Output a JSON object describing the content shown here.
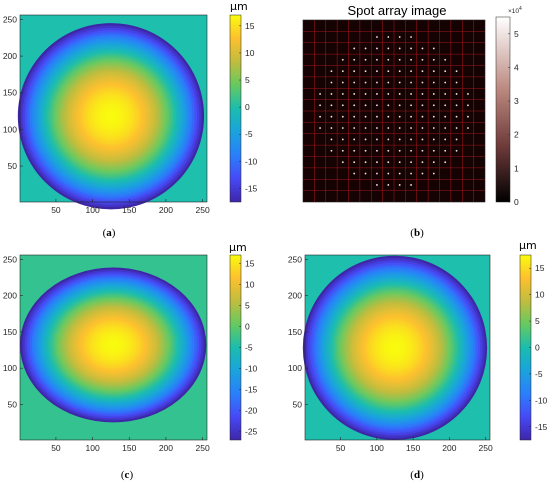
{
  "chart_data": [
    {
      "type": "heatmap",
      "panel": "a",
      "caption_letter": "a",
      "field": "circular_dome",
      "xlim": [
        1,
        256
      ],
      "ylim": [
        1,
        256
      ],
      "x_ticks": [
        50,
        100,
        150,
        200,
        250
      ],
      "y_ticks": [
        50,
        100,
        150,
        200,
        250
      ],
      "peak_center": [
        125,
        118
      ],
      "aperture_radius": 127,
      "colorbar": {
        "unit": "µm",
        "min": -17.5,
        "max": 17,
        "ticks": [
          15,
          10,
          5,
          0,
          -5,
          -10,
          -15
        ],
        "outside_value": 0
      }
    },
    {
      "type": "heatmap",
      "panel": "b",
      "caption_letter": "b",
      "field": "spot_array",
      "title": "Spot array image",
      "xlim": [
        1,
        256
      ],
      "ylim": [
        1,
        256
      ],
      "grid": true,
      "spot_grid": 16,
      "colorbar": {
        "exponent": "×10",
        "exponent_power": "4",
        "min": 0,
        "max": 5.5,
        "ticks": [
          5,
          4,
          3,
          2,
          1,
          0
        ]
      }
    },
    {
      "type": "heatmap",
      "panel": "c",
      "caption_letter": "c",
      "field": "elliptical_dome",
      "xlim": [
        1,
        256
      ],
      "ylim": [
        1,
        256
      ],
      "x_ticks": [
        50,
        100,
        150,
        200,
        250
      ],
      "y_ticks": [
        50,
        100,
        150,
        200,
        250
      ],
      "peak_center": [
        128,
        132
      ],
      "aperture_radius": 127,
      "colorbar": {
        "unit": "µm",
        "min": -27,
        "max": 17,
        "ticks": [
          15,
          10,
          5,
          0,
          -5,
          -10,
          -15,
          -20,
          -25
        ],
        "outside_value": 1
      }
    },
    {
      "type": "heatmap",
      "panel": "d",
      "caption_letter": "d",
      "field": "circular_dome",
      "xlim": [
        1,
        256
      ],
      "ylim": [
        1,
        256
      ],
      "x_ticks": [
        50,
        100,
        150,
        200,
        250
      ],
      "y_ticks": [
        50,
        100,
        150,
        200,
        250
      ],
      "peak_center": [
        125,
        128
      ],
      "aperture_radius": 127,
      "colorbar": {
        "unit": "µm",
        "min": -17.5,
        "max": 17.5,
        "ticks": [
          15,
          10,
          5,
          0,
          -5,
          -10,
          -15
        ],
        "outside_value": 0
      }
    }
  ]
}
